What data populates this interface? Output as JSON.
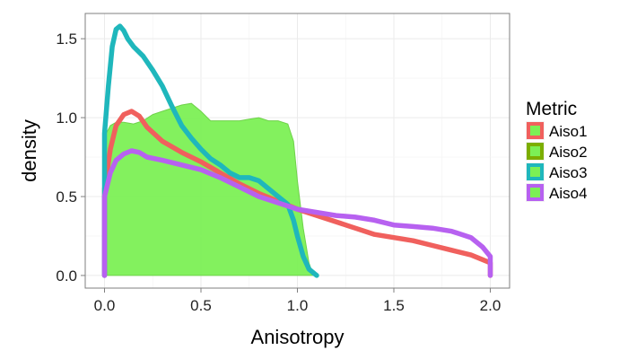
{
  "chart_data": {
    "type": "area",
    "xlabel": "Anisotropy",
    "ylabel": "density",
    "xlim": [
      -0.1,
      2.1
    ],
    "ylim": [
      -0.08,
      1.66
    ],
    "xticks": [
      0.0,
      0.5,
      1.0,
      1.5,
      2.0
    ],
    "xtick_labels": [
      "0.0",
      "0.5",
      "1.0",
      "1.5",
      "2.0"
    ],
    "yticks": [
      0.0,
      0.5,
      1.0,
      1.5
    ],
    "ytick_labels": [
      "0.0",
      "0.5",
      "1.0",
      "1.5"
    ],
    "grid": true,
    "legend_title": "Metric",
    "legend_position": "right",
    "series": [
      {
        "name": "Aiso1",
        "color": "#F0605D",
        "style": "line",
        "x": [
          0.0,
          0.0,
          0.03,
          0.06,
          0.1,
          0.14,
          0.18,
          0.22,
          0.3,
          0.4,
          0.5,
          0.6,
          0.7,
          0.8,
          0.9,
          1.0,
          1.1,
          1.2,
          1.3,
          1.4,
          1.5,
          1.6,
          1.7,
          1.8,
          1.9,
          1.96,
          2.0,
          2.0
        ],
        "values": [
          0.0,
          0.55,
          0.8,
          0.95,
          1.02,
          1.04,
          1.01,
          0.94,
          0.85,
          0.78,
          0.72,
          0.65,
          0.58,
          0.52,
          0.47,
          0.42,
          0.38,
          0.34,
          0.3,
          0.26,
          0.24,
          0.22,
          0.19,
          0.16,
          0.13,
          0.1,
          0.08,
          0.0
        ]
      },
      {
        "name": "Aiso2",
        "color": "#7CAE00",
        "fill": "#7CF055",
        "style": "area",
        "x": [
          0.0,
          0.0,
          0.03,
          0.06,
          0.1,
          0.15,
          0.2,
          0.25,
          0.3,
          0.35,
          0.4,
          0.45,
          0.5,
          0.55,
          0.6,
          0.65,
          0.7,
          0.75,
          0.8,
          0.85,
          0.9,
          0.95,
          0.98,
          1.0,
          1.03,
          1.06,
          1.08,
          1.1
        ],
        "values": [
          0.0,
          0.88,
          0.95,
          0.97,
          0.97,
          0.96,
          0.98,
          1.02,
          1.04,
          1.06,
          1.08,
          1.09,
          1.04,
          0.98,
          0.98,
          0.98,
          0.98,
          0.99,
          1.0,
          0.98,
          0.98,
          0.96,
          0.85,
          0.6,
          0.3,
          0.08,
          0.01,
          0.0
        ]
      },
      {
        "name": "Aiso3",
        "color": "#1FB7BC",
        "style": "line",
        "x": [
          0.0,
          0.0,
          0.02,
          0.04,
          0.06,
          0.08,
          0.1,
          0.12,
          0.15,
          0.2,
          0.25,
          0.3,
          0.35,
          0.4,
          0.45,
          0.5,
          0.55,
          0.6,
          0.65,
          0.7,
          0.75,
          0.8,
          0.85,
          0.9,
          0.95,
          0.98,
          1.0,
          1.03,
          1.06,
          1.09,
          1.1
        ],
        "values": [
          0.0,
          0.9,
          1.2,
          1.45,
          1.56,
          1.58,
          1.55,
          1.5,
          1.45,
          1.39,
          1.3,
          1.2,
          1.07,
          0.95,
          0.87,
          0.8,
          0.74,
          0.7,
          0.65,
          0.62,
          0.62,
          0.6,
          0.55,
          0.5,
          0.45,
          0.35,
          0.25,
          0.12,
          0.04,
          0.01,
          0.0
        ]
      },
      {
        "name": "Aiso4",
        "color": "#B761F0",
        "style": "line",
        "x": [
          0.0,
          0.0,
          0.03,
          0.06,
          0.1,
          0.14,
          0.18,
          0.22,
          0.3,
          0.4,
          0.5,
          0.6,
          0.7,
          0.8,
          0.9,
          1.0,
          1.1,
          1.2,
          1.3,
          1.4,
          1.5,
          1.6,
          1.7,
          1.8,
          1.9,
          1.96,
          2.0,
          2.0
        ],
        "values": [
          0.0,
          0.5,
          0.65,
          0.73,
          0.77,
          0.79,
          0.78,
          0.75,
          0.73,
          0.7,
          0.67,
          0.62,
          0.56,
          0.5,
          0.46,
          0.42,
          0.4,
          0.38,
          0.37,
          0.35,
          0.32,
          0.31,
          0.3,
          0.28,
          0.24,
          0.18,
          0.12,
          0.0
        ]
      }
    ]
  }
}
